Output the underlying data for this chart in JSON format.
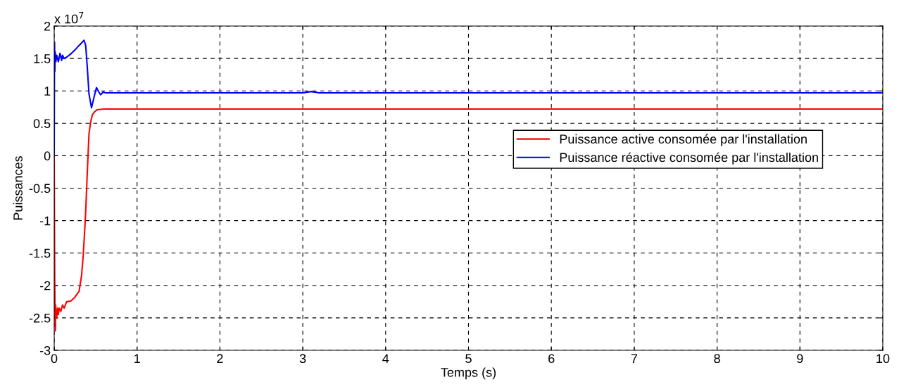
{
  "chart_data": {
    "type": "line",
    "xlabel": "Temps (s)",
    "ylabel": "Puissances",
    "annotations": [
      "x 10$^{7}$"
    ],
    "series": [
      {
        "name": "Puissance active consomée par l'installation",
        "color": "#ff0000",
        "x": [
          0,
          0.006,
          0.011,
          0.015,
          0.018,
          0.022,
          0.03,
          0.04,
          0.05,
          0.06,
          0.08,
          0.1,
          0.12,
          0.15,
          0.2,
          0.25,
          0.3,
          0.33,
          0.35,
          0.37,
          0.38,
          0.39,
          0.4,
          0.41,
          0.42,
          0.44,
          0.46,
          0.49,
          0.52,
          0.6,
          0.8,
          1,
          2,
          3,
          4,
          5,
          6,
          7,
          8,
          9,
          10
        ],
        "values": [
          0,
          -1.9,
          -2.5,
          -2.7,
          -2.3,
          -2.45,
          -2.5,
          -2.35,
          -2.45,
          -2.35,
          -2.4,
          -2.3,
          -2.35,
          -2.25,
          -2.24,
          -2.18,
          -2.09,
          -1.85,
          -1.54,
          -1.1,
          -0.86,
          -0.55,
          -0.24,
          0.05,
          0.34,
          0.52,
          0.63,
          0.68,
          0.71,
          0.72,
          0.72,
          0.72,
          0.72,
          0.72,
          0.72,
          0.72,
          0.72,
          0.72,
          0.72,
          0.72,
          0.72
        ]
      },
      {
        "name": "Puissance réactive consomée par l'installation",
        "color": "#0000ff",
        "x": [
          0,
          0.004,
          0.008,
          0.012,
          0.02,
          0.03,
          0.05,
          0.07,
          0.09,
          0.1,
          0.12,
          0.15,
          0.2,
          0.25,
          0.3,
          0.33,
          0.36,
          0.38,
          0.4,
          0.42,
          0.45,
          0.48,
          0.51,
          0.54,
          0.56,
          0.59,
          0.62,
          0.7,
          0.8,
          1,
          2,
          3,
          3.1,
          3.2,
          4,
          5,
          6,
          7,
          8,
          9,
          10
        ],
        "values": [
          0,
          1.75,
          1.3,
          1.6,
          1.45,
          1.55,
          1.45,
          1.58,
          1.47,
          1.55,
          1.5,
          1.52,
          1.57,
          1.63,
          1.7,
          1.74,
          1.78,
          1.7,
          1.35,
          0.95,
          0.74,
          0.9,
          1.05,
          0.98,
          0.94,
          0.98,
          0.97,
          0.97,
          0.97,
          0.97,
          0.97,
          0.97,
          0.99,
          0.97,
          0.97,
          0.97,
          0.97,
          0.97,
          0.97,
          0.97,
          0.97
        ]
      }
    ],
    "xlim": [
      0,
      10
    ],
    "xticks": [
      0,
      1,
      2,
      3,
      4,
      5,
      6,
      7,
      8,
      9,
      10
    ],
    "ylim": [
      -3,
      2
    ],
    "yticks": [
      -3,
      -2.5,
      -2,
      -1.5,
      -1,
      -0.5,
      0,
      0.5,
      1,
      1.5,
      2
    ],
    "grid": true,
    "legend": "right",
    "line_style": "solid",
    "marker": "none"
  }
}
